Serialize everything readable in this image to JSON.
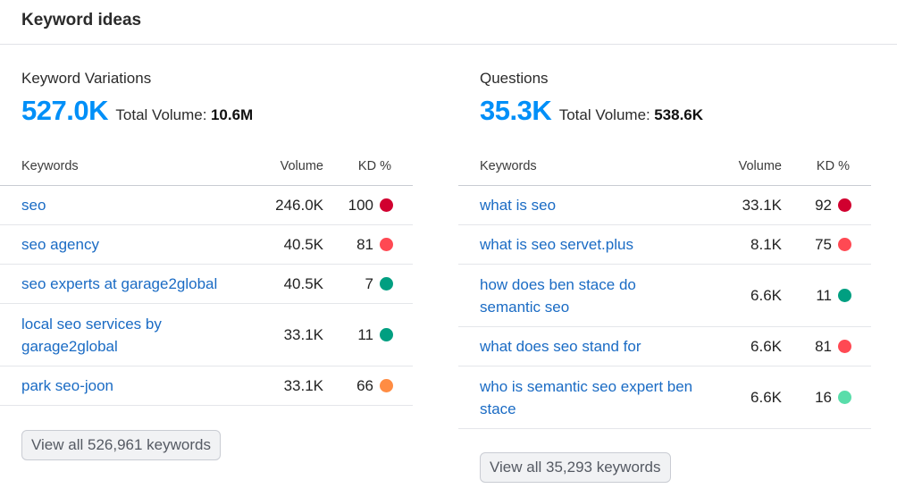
{
  "header": {
    "title": "Keyword ideas"
  },
  "panels": {
    "variations": {
      "title": "Keyword Variations",
      "count": "527.0K",
      "total_label": "Total Volume:",
      "total_value": "10.6M",
      "columns": {
        "keywords": "Keywords",
        "volume": "Volume",
        "kd": "KD %"
      },
      "rows": [
        {
          "keyword": "seo",
          "volume": "246.0K",
          "kd": "100",
          "color": "#d1002f"
        },
        {
          "keyword": "seo agency",
          "volume": "40.5K",
          "kd": "81",
          "color": "#ff4953"
        },
        {
          "keyword": "seo experts at garage2global",
          "volume": "40.5K",
          "kd": "7",
          "color": "#009f81"
        },
        {
          "keyword": "local seo services by garage2global",
          "volume": "33.1K",
          "kd": "11",
          "color": "#009f81"
        },
        {
          "keyword": "park seo-joon",
          "volume": "33.1K",
          "kd": "66",
          "color": "#ff8c43"
        }
      ],
      "button": "View all 526,961 keywords"
    },
    "questions": {
      "title": "Questions",
      "count": "35.3K",
      "total_label": "Total Volume:",
      "total_value": "538.6K",
      "columns": {
        "keywords": "Keywords",
        "volume": "Volume",
        "kd": "KD %"
      },
      "rows": [
        {
          "keyword": "what is seo",
          "volume": "33.1K",
          "kd": "92",
          "color": "#d1002f"
        },
        {
          "keyword": "what is seo servet.plus",
          "volume": "8.1K",
          "kd": "75",
          "color": "#ff4953"
        },
        {
          "keyword": "how does ben stace do semantic seo",
          "volume": "6.6K",
          "kd": "11",
          "color": "#009f81"
        },
        {
          "keyword": "what does seo stand for",
          "volume": "6.6K",
          "kd": "81",
          "color": "#ff4953"
        },
        {
          "keyword": "who is semantic seo expert ben stace",
          "volume": "6.6K",
          "kd": "16",
          "color": "#59ddaa"
        }
      ],
      "button": "View all 35,293 keywords"
    }
  }
}
